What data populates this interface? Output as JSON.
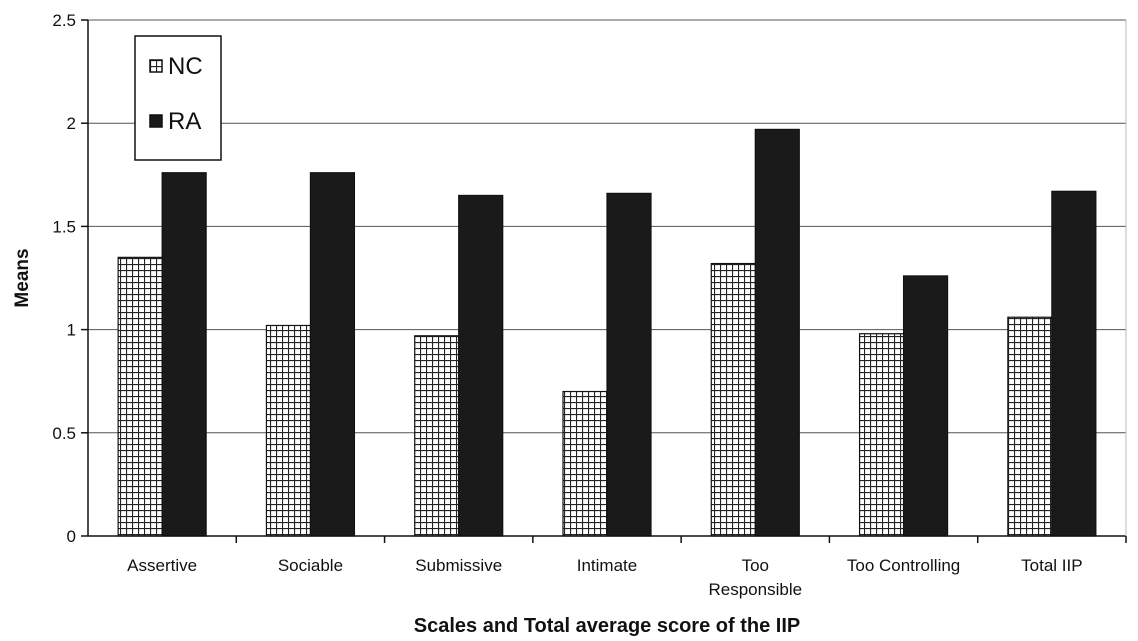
{
  "chart_data": {
    "type": "bar",
    "categories": [
      [
        "Assertive"
      ],
      [
        "Sociable"
      ],
      [
        "Submissive"
      ],
      [
        "Intimate"
      ],
      [
        "Too",
        "Responsible"
      ],
      [
        "Too Controlling"
      ],
      [
        "Total IIP"
      ]
    ],
    "series": [
      {
        "name": "NC",
        "values": [
          1.35,
          1.02,
          0.97,
          0.7,
          1.32,
          0.98,
          1.06
        ],
        "pattern": "crosshatch",
        "color": "#ffffff"
      },
      {
        "name": "RA",
        "values": [
          1.76,
          1.76,
          1.65,
          1.66,
          1.97,
          1.26,
          1.67
        ],
        "pattern": "solid",
        "color": "#1a1a1a"
      }
    ],
    "xlabel": "Scales and Total average score of the IIP",
    "ylabel": "Means",
    "ylim": [
      0,
      2.5
    ],
    "yticks": [
      "0",
      "0.5",
      "1",
      "1.5",
      "2",
      "2.5"
    ],
    "grid": true,
    "legend_position": "top-left"
  }
}
